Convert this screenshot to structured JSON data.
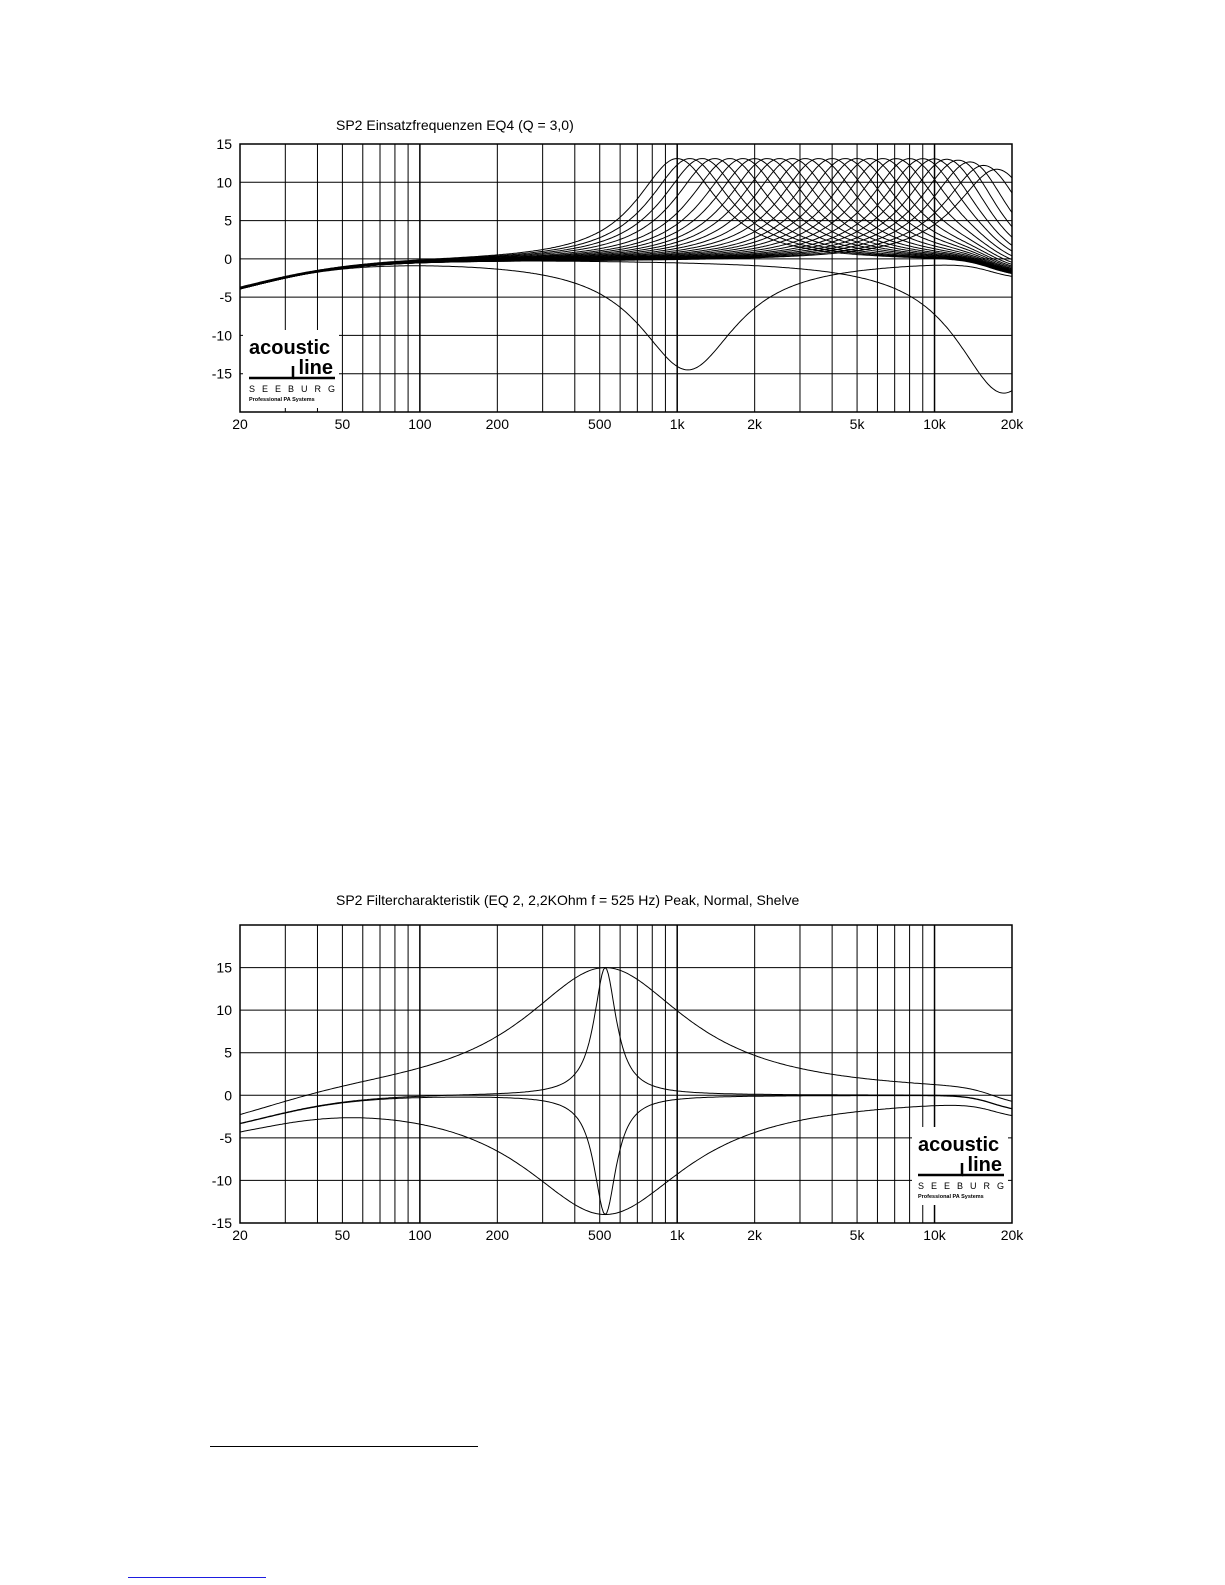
{
  "page": {
    "background": "#ffffff"
  },
  "logo": {
    "word1": "acoustic",
    "word2": "line",
    "brand": "SEEBURG",
    "tagline": "Professional PA Systems"
  },
  "chart_data": [
    {
      "type": "line",
      "title": "SP2 Einsatzfrequenzen EQ4 (Q = 3,0)",
      "xlabel": "",
      "ylabel": "",
      "xscale": "log",
      "xlim": [
        20,
        20000
      ],
      "ylim": [
        -20,
        15
      ],
      "x_tick_labels": [
        {
          "value": 20,
          "label": "20"
        },
        {
          "value": 50,
          "label": "50"
        },
        {
          "value": 100,
          "label": "100"
        },
        {
          "value": 200,
          "label": "200"
        },
        {
          "value": 500,
          "label": "500"
        },
        {
          "value": 1000,
          "label": "1k"
        },
        {
          "value": 2000,
          "label": "2k"
        },
        {
          "value": 5000,
          "label": "5k"
        },
        {
          "value": 10000,
          "label": "10k"
        },
        {
          "value": 20000,
          "label": "20k"
        }
      ],
      "y_tick_labels": [
        {
          "value": 15,
          "label": "15"
        },
        {
          "value": 10,
          "label": "10"
        },
        {
          "value": 5,
          "label": "5"
        },
        {
          "value": 0,
          "label": "0"
        },
        {
          "value": -5,
          "label": "-5"
        },
        {
          "value": -10,
          "label": "-10"
        },
        {
          "value": -15,
          "label": "-15"
        }
      ],
      "grid": true,
      "legend": "none",
      "logo_position": "bottom-left",
      "boost_centers_hz": [
        1000,
        1120,
        1250,
        1400,
        1600,
        1800,
        2000,
        2240,
        2500,
        2800,
        3150,
        3550,
        4000,
        4500,
        5000,
        5600,
        6300,
        7100,
        8000,
        9000,
        10000,
        11200,
        12500,
        14000,
        16000,
        18000
      ],
      "boost_peak_db": 13.5,
      "cut_curves": [
        {
          "center_hz": 1100,
          "depth_db": -14.5
        },
        {
          "center_hz": 18000,
          "depth_db": -16
        }
      ],
      "q": 3.0
    },
    {
      "type": "line",
      "title": "SP2 Filtercharakteristik (EQ 2, 2,2KOhm f = 525 Hz) Peak, Normal, Shelve",
      "xlabel": "",
      "ylabel": "",
      "xscale": "log",
      "xlim": [
        20,
        20000
      ],
      "ylim": [
        -15,
        20
      ],
      "x_tick_labels": [
        {
          "value": 20,
          "label": "20"
        },
        {
          "value": 50,
          "label": "50"
        },
        {
          "value": 100,
          "label": "100"
        },
        {
          "value": 200,
          "label": "200"
        },
        {
          "value": 500,
          "label": "500"
        },
        {
          "value": 1000,
          "label": "1k"
        },
        {
          "value": 2000,
          "label": "2k"
        },
        {
          "value": 5000,
          "label": "5k"
        },
        {
          "value": 10000,
          "label": "10k"
        },
        {
          "value": 20000,
          "label": "20k"
        }
      ],
      "y_tick_labels": [
        {
          "value": 15,
          "label": "15"
        },
        {
          "value": 10,
          "label": "10"
        },
        {
          "value": 5,
          "label": "5"
        },
        {
          "value": 0,
          "label": "0"
        },
        {
          "value": -5,
          "label": "-5"
        },
        {
          "value": -10,
          "label": "-10"
        },
        {
          "value": -15,
          "label": "-15"
        }
      ],
      "grid": true,
      "legend": "none",
      "logo_position": "bottom-right",
      "center_hz": 525,
      "curves": [
        {
          "gain_db": 15,
          "bandwidth_octaves": 2.6
        },
        {
          "gain_db": 15,
          "bandwidth_octaves": 0.35
        },
        {
          "gain_db": -14,
          "bandwidth_octaves": 2.6
        },
        {
          "gain_db": -14,
          "bandwidth_octaves": 0.35
        }
      ]
    }
  ]
}
